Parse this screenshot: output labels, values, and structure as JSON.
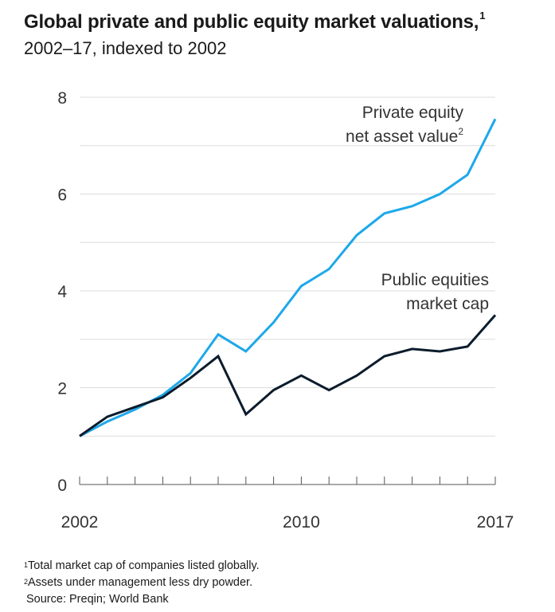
{
  "title": "Global private and public equity market valuations,",
  "title_note": "1",
  "subtitle": "2002–17, indexed to 2002",
  "footnotes": [
    {
      "mark": "1",
      "text": "Total market cap of companies listed globally."
    },
    {
      "mark": "2",
      "text": "Assets under management less dry powder."
    }
  ],
  "source": "Source: Preqin; World Bank",
  "colors": {
    "private": "#1ea8ea",
    "public": "#0b1c2c",
    "grid": "#dcdcdc",
    "axis": "#555555"
  },
  "chart_data": {
    "type": "line",
    "x": [
      2002,
      2003,
      2004,
      2005,
      2006,
      2007,
      2008,
      2009,
      2010,
      2011,
      2012,
      2013,
      2014,
      2015,
      2016,
      2017
    ],
    "xticks": [
      2002,
      2010,
      2017
    ],
    "xlim": [
      2002,
      2017
    ],
    "ylim": [
      0,
      8
    ],
    "yticks": [
      0,
      2,
      4,
      6,
      8
    ],
    "grid": "horizontal",
    "series": [
      {
        "key": "private",
        "name_lines": [
          "Private equity",
          "net asset value"
        ],
        "name_note": "2",
        "values": [
          1.0,
          1.3,
          1.55,
          1.85,
          2.3,
          3.1,
          2.75,
          3.35,
          4.1,
          4.45,
          5.15,
          5.6,
          5.75,
          6.0,
          6.4,
          7.55
        ]
      },
      {
        "key": "public",
        "name_lines": [
          "Public equities",
          "market cap"
        ],
        "values": [
          1.0,
          1.4,
          1.6,
          1.8,
          2.2,
          2.65,
          1.45,
          1.95,
          2.25,
          1.95,
          2.25,
          2.65,
          2.8,
          2.75,
          2.85,
          3.5
        ]
      }
    ]
  }
}
